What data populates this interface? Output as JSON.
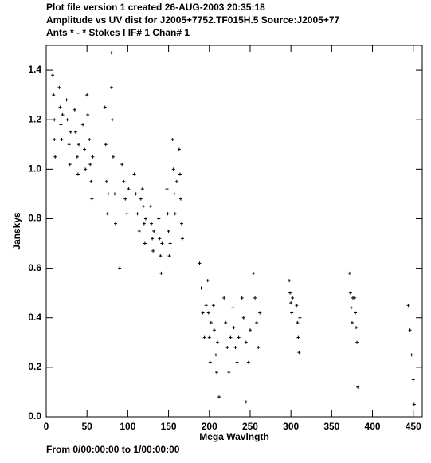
{
  "chart_data": {
    "type": "scatter",
    "title": "Plot file version 1  created 26-AUG-2003 20:35:18",
    "subtitle": "Amplitude vs UV dist for J2005+7752.TF015H.5   Source:J2005+77",
    "subtitle2": "Ants * - *     Stokes I  IF# 1  Chan# 1",
    "x_label": "Mega Wavlngth",
    "y_label": "Janskys",
    "footer": "From  0/00:00:00  to  1/00:00:00",
    "color": "#000000",
    "xlim": [
      0,
      461
    ],
    "ylim": [
      0,
      1.5
    ],
    "xticks": [
      0,
      50,
      100,
      150,
      200,
      250,
      300,
      350,
      400,
      450
    ],
    "yticks": [
      {
        "value": 0,
        "label": "0.0"
      },
      0.2,
      0.4,
      0.6,
      0.8,
      {
        "value": 1,
        "label": "1.0"
      },
      1.2,
      1.4
    ],
    "x": [
      8,
      9,
      10,
      10,
      11,
      16,
      17,
      18,
      19,
      20,
      25,
      26,
      28,
      29,
      30,
      35,
      36,
      38,
      39,
      40,
      45,
      47,
      48,
      50,
      51,
      53,
      54,
      55,
      56,
      57,
      72,
      73,
      74,
      75,
      76,
      80,
      81,
      82,
      84,
      85,
      93,
      95,
      97,
      99,
      101,
      108,
      110,
      112,
      114,
      116,
      118,
      119,
      120,
      121,
      122,
      128,
      129,
      130,
      131,
      132,
      138,
      139,
      140,
      141,
      142,
      148,
      149,
      150,
      151,
      152,
      155,
      156,
      157,
      158,
      160,
      163,
      164,
      165,
      166,
      167,
      188,
      190,
      192,
      194,
      196,
      198,
      199,
      200,
      201,
      202,
      205,
      206,
      208,
      209,
      210,
      218,
      220,
      222,
      224,
      226,
      229,
      230,
      232,
      234,
      236,
      240,
      242,
      245,
      248,
      250,
      254,
      256,
      258,
      260,
      262,
      298,
      299,
      300,
      301,
      302,
      307,
      308,
      309,
      310,
      311,
      372,
      373,
      374,
      375,
      376,
      378,
      379,
      380,
      381,
      382,
      444,
      446,
      448,
      450,
      451,
      80,
      90,
      212,
      245
    ],
    "values": [
      1.38,
      1.3,
      1.2,
      1.12,
      1.05,
      1.33,
      1.25,
      1.18,
      1.12,
      1.22,
      1.28,
      1.2,
      1.1,
      1.02,
      1.15,
      1.24,
      1.15,
      1.05,
      0.98,
      1.1,
      1.18,
      1.08,
      1.0,
      1.3,
      1.22,
      1.12,
      1.02,
      0.95,
      0.88,
      1.05,
      1.25,
      1.1,
      0.95,
      0.82,
      0.9,
      1.33,
      1.2,
      1.05,
      0.9,
      0.78,
      1.02,
      0.95,
      0.88,
      0.82,
      0.92,
      0.98,
      0.9,
      0.82,
      0.75,
      0.88,
      0.92,
      0.85,
      0.78,
      0.7,
      0.8,
      0.85,
      0.78,
      0.72,
      0.67,
      0.75,
      0.8,
      0.72,
      0.65,
      0.58,
      0.7,
      0.92,
      0.82,
      0.75,
      0.65,
      0.7,
      1.12,
      1.0,
      0.9,
      0.82,
      0.95,
      1.08,
      0.98,
      0.88,
      0.78,
      0.72,
      0.62,
      0.52,
      0.42,
      0.32,
      0.45,
      0.55,
      0.42,
      0.32,
      0.22,
      0.38,
      0.45,
      0.35,
      0.25,
      0.18,
      0.3,
      0.48,
      0.38,
      0.28,
      0.18,
      0.32,
      0.44,
      0.36,
      0.28,
      0.22,
      0.32,
      0.48,
      0.4,
      0.3,
      0.22,
      0.35,
      0.58,
      0.48,
      0.38,
      0.28,
      0.42,
      0.55,
      0.5,
      0.46,
      0.42,
      0.48,
      0.45,
      0.38,
      0.32,
      0.26,
      0.4,
      0.58,
      0.5,
      0.44,
      0.38,
      0.48,
      0.48,
      0.42,
      0.36,
      0.3,
      0.12,
      0.45,
      0.35,
      0.25,
      0.15,
      0.05,
      1.47,
      0.6,
      0.08,
      0.06
    ]
  }
}
